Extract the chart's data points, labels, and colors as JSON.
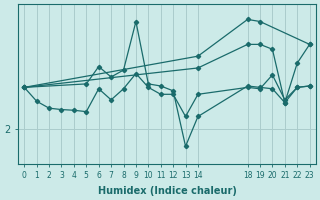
{
  "xlabel": "Humidex (Indice chaleur)",
  "bg_color": "#cceae8",
  "line_color": "#1a6b6b",
  "grid_color": "#aacccc",
  "xticks": [
    0,
    1,
    2,
    3,
    4,
    5,
    6,
    7,
    8,
    9,
    10,
    11,
    12,
    13,
    14,
    18,
    19,
    20,
    21,
    22,
    23
  ],
  "ytick_label": "2",
  "ytick_val": 2.0,
  "series1": [
    [
      0,
      2.6
    ],
    [
      1,
      2.4
    ],
    [
      2,
      2.3
    ],
    [
      3,
      2.28
    ],
    [
      4,
      2.27
    ],
    [
      5,
      2.25
    ],
    [
      6,
      2.58
    ],
    [
      7,
      2.42
    ],
    [
      8,
      2.58
    ],
    [
      9,
      2.8
    ],
    [
      10,
      2.6
    ],
    [
      11,
      2.5
    ],
    [
      12,
      2.5
    ],
    [
      13,
      2.18
    ],
    [
      14,
      2.5
    ],
    [
      18,
      2.6
    ],
    [
      19,
      2.58
    ],
    [
      20,
      2.78
    ],
    [
      21,
      2.42
    ],
    [
      22,
      2.6
    ],
    [
      23,
      2.62
    ]
  ],
  "series2": [
    [
      0,
      2.6
    ],
    [
      5,
      2.65
    ],
    [
      6,
      2.9
    ],
    [
      7,
      2.75
    ],
    [
      8,
      2.85
    ],
    [
      9,
      3.55
    ],
    [
      10,
      2.65
    ],
    [
      11,
      2.62
    ],
    [
      12,
      2.55
    ],
    [
      13,
      1.75
    ],
    [
      14,
      2.18
    ],
    [
      18,
      2.62
    ],
    [
      19,
      2.6
    ],
    [
      20,
      2.58
    ],
    [
      21,
      2.38
    ],
    [
      22,
      2.6
    ],
    [
      23,
      2.62
    ]
  ],
  "series3": [
    [
      0,
      2.6
    ],
    [
      14,
      2.88
    ],
    [
      18,
      3.22
    ],
    [
      19,
      3.22
    ],
    [
      20,
      3.15
    ],
    [
      21,
      2.38
    ],
    [
      22,
      2.95
    ],
    [
      23,
      3.22
    ]
  ],
  "series4": [
    [
      0,
      2.6
    ],
    [
      14,
      3.05
    ],
    [
      18,
      3.58
    ],
    [
      19,
      3.55
    ],
    [
      23,
      3.22
    ]
  ],
  "ylim": [
    1.5,
    3.8
  ],
  "xlim": [
    -0.5,
    23.5
  ]
}
